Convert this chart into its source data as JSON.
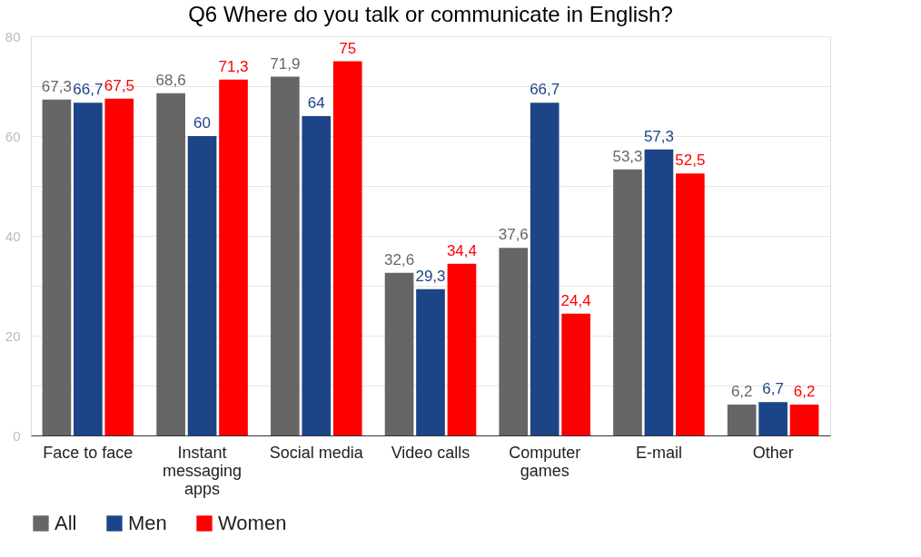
{
  "chart_data": {
    "type": "bar",
    "title": "Q6 Where do you talk or communicate in English?",
    "categories": [
      "Face to face",
      "Instant messaging apps",
      "Social media",
      "Video calls",
      "Computer games",
      "E-mail",
      "Other"
    ],
    "series": [
      {
        "name": "All",
        "color": "#666666",
        "values": [
          67.3,
          68.6,
          71.9,
          32.6,
          37.6,
          53.3,
          6.2
        ],
        "value_labels": [
          "67,3",
          "68,6",
          "71,9",
          "32,6",
          "37,6",
          "53,3",
          "6,2"
        ]
      },
      {
        "name": "Men",
        "color": "#1c4587",
        "values": [
          66.7,
          60,
          64,
          29.3,
          66.7,
          57.3,
          6.7
        ],
        "value_labels": [
          "66,7",
          "60",
          "64",
          "29,3",
          "66,7",
          "57,3",
          "6,7"
        ]
      },
      {
        "name": "Women",
        "color": "#ff0000",
        "values": [
          67.5,
          71.3,
          75,
          34.4,
          24.4,
          52.5,
          6.2
        ],
        "value_labels": [
          "67,5",
          "71,3",
          "75",
          "34,4",
          "24,4",
          "52,5",
          "6,2"
        ]
      }
    ],
    "ylim": [
      0,
      80
    ],
    "yticks": [
      0,
      {
        "value": 10,
        "label": null
      },
      20,
      {
        "value": 30,
        "label": null
      },
      40,
      {
        "value": 50,
        "label": null
      },
      60,
      {
        "value": 70,
        "label": null
      },
      80
    ],
    "grid": "y",
    "legend": "bottom"
  }
}
